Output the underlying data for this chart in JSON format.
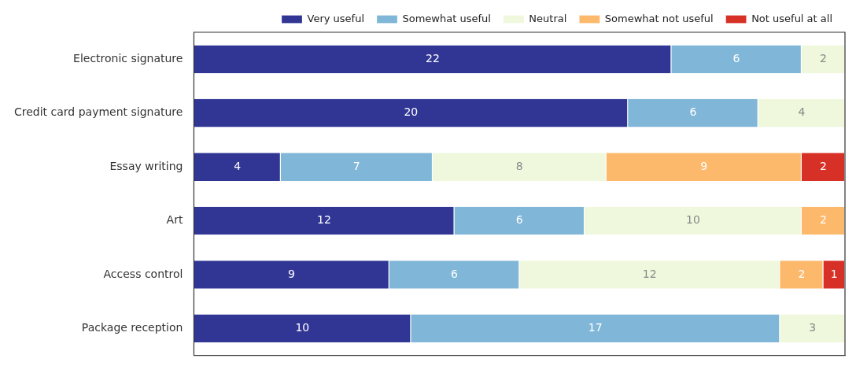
{
  "chart_data": {
    "type": "bar",
    "orientation": "horizontal",
    "stacked": true,
    "categories": [
      "Electronic signature",
      "Credit card payment signature",
      "Essay writing",
      "Art",
      "Access control",
      "Package reception"
    ],
    "series": [
      {
        "name": "Very useful",
        "color": "#313695",
        "values": [
          22,
          20,
          4,
          12,
          9,
          10
        ]
      },
      {
        "name": "Somewhat useful",
        "color": "#80b6d7",
        "values": [
          6,
          6,
          7,
          6,
          6,
          17
        ]
      },
      {
        "name": "Neutral",
        "color": "#eff8dc",
        "values": [
          2,
          4,
          8,
          10,
          12,
          3
        ]
      },
      {
        "name": "Somewhat not useful",
        "color": "#fdb96b",
        "values": [
          null,
          null,
          9,
          2,
          2,
          null
        ]
      },
      {
        "name": "Not useful at all",
        "color": "#d73027",
        "values": [
          null,
          null,
          2,
          null,
          1,
          null
        ]
      }
    ],
    "xlim": [
      0,
      30
    ],
    "tick_labels": "y",
    "grid": false,
    "legend": "top right",
    "data_labels": true
  }
}
